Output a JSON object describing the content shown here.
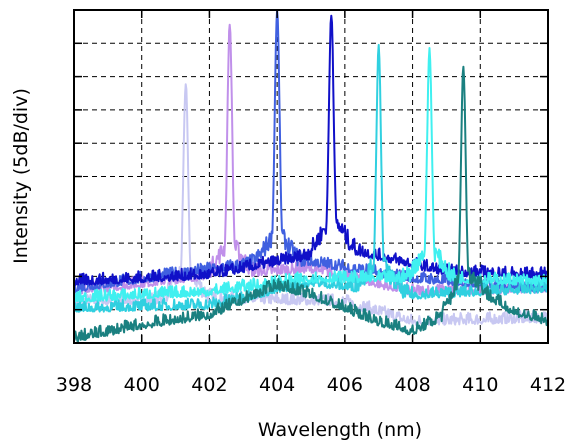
{
  "chart_data": {
    "type": "line",
    "title": "",
    "xlabel": "Wavelength (nm)",
    "ylabel": "Intensity (5dB/div)",
    "xlim": [
      398,
      412
    ],
    "ylim": [
      0,
      10
    ],
    "xticks": [
      398,
      400,
      402,
      404,
      406,
      408,
      410,
      412
    ],
    "xtick_labels": [
      "398",
      "400",
      "402",
      "404",
      "406",
      "408",
      "410",
      "412"
    ],
    "yticks": [
      0,
      1,
      2,
      3,
      4,
      5,
      6,
      7,
      8,
      9,
      10
    ],
    "ytick_labels": [],
    "grid": {
      "x": true,
      "y": true,
      "style": "dashed"
    },
    "legend": "none",
    "series": [
      {
        "color": "#c8c8f2",
        "peak_x": 401.3,
        "peak_y": 7.8,
        "baseline": [
          [
            398,
            1.2
          ],
          [
            402,
            1.3
          ],
          [
            406,
            1.2
          ],
          [
            408,
            0.6
          ],
          [
            412,
            0.7
          ]
        ]
      },
      {
        "color": "#c090ea",
        "peak_x": 402.6,
        "peak_y": 9.6,
        "baseline": [
          [
            398,
            1.5
          ],
          [
            402,
            2.0
          ],
          [
            405,
            2.2
          ],
          [
            408,
            1.5
          ],
          [
            412,
            1.6
          ]
        ]
      },
      {
        "color": "#4060e0",
        "peak_x": 404.0,
        "peak_y": 10.0,
        "baseline": [
          [
            398,
            1.6
          ],
          [
            403,
            2.3
          ],
          [
            405,
            2.4
          ],
          [
            408,
            1.9
          ],
          [
            412,
            1.6
          ]
        ]
      },
      {
        "color": "#1010c8",
        "peak_x": 405.6,
        "peak_y": 9.9,
        "baseline": [
          [
            398,
            1.8
          ],
          [
            402,
            2.0
          ],
          [
            404,
            2.4
          ],
          [
            406,
            2.8
          ],
          [
            409,
            2.1
          ],
          [
            412,
            2.0
          ]
        ]
      },
      {
        "color": "#30d0e0",
        "peak_x": 407.0,
        "peak_y": 8.9,
        "baseline": [
          [
            398,
            1.0
          ],
          [
            402,
            1.1
          ],
          [
            405,
            1.8
          ],
          [
            408,
            1.4
          ],
          [
            412,
            1.6
          ]
        ]
      },
      {
        "color": "#40f0f0",
        "peak_x": 408.5,
        "peak_y": 8.8,
        "baseline": [
          [
            398,
            1.3
          ],
          [
            402,
            1.5
          ],
          [
            405,
            1.9
          ],
          [
            409,
            1.9
          ],
          [
            412,
            1.8
          ]
        ]
      },
      {
        "color": "#1a8080",
        "peak_x": 409.5,
        "peak_y": 8.3,
        "baseline": [
          [
            398,
            0.1
          ],
          [
            400,
            0.5
          ],
          [
            402,
            0.8
          ],
          [
            404,
            1.7
          ],
          [
            405,
            1.4
          ],
          [
            407,
            0.6
          ],
          [
            408,
            0.3
          ],
          [
            409,
            0.8
          ],
          [
            410,
            1.5
          ],
          [
            411,
            0.9
          ],
          [
            412,
            0.6
          ]
        ]
      }
    ]
  }
}
